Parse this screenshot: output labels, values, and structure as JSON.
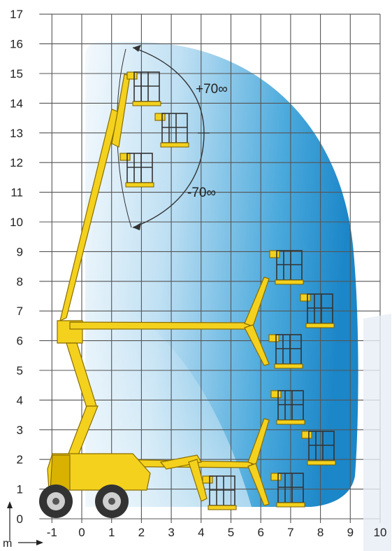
{
  "unit_label": "m",
  "y_ticks": [
    "0",
    "1",
    "2",
    "3",
    "4",
    "5",
    "6",
    "7",
    "8",
    "9",
    "10",
    "11",
    "12",
    "13",
    "14",
    "15",
    "16",
    "17"
  ],
  "x_ticks": [
    "-1",
    "0",
    "1",
    "2",
    "3",
    "4",
    "5",
    "6",
    "7",
    "8",
    "9",
    "10"
  ],
  "angles": {
    "upper": "+70∞",
    "lower": "-70∞"
  },
  "colors": {
    "envelope_light": "#e8f3fb",
    "envelope_dark": "#1d8fd0",
    "machine_yellow": "#f4d11d",
    "grid": "#555555"
  },
  "axes": {
    "x_range": [
      -1,
      10
    ],
    "y_range": [
      0,
      17
    ]
  }
}
